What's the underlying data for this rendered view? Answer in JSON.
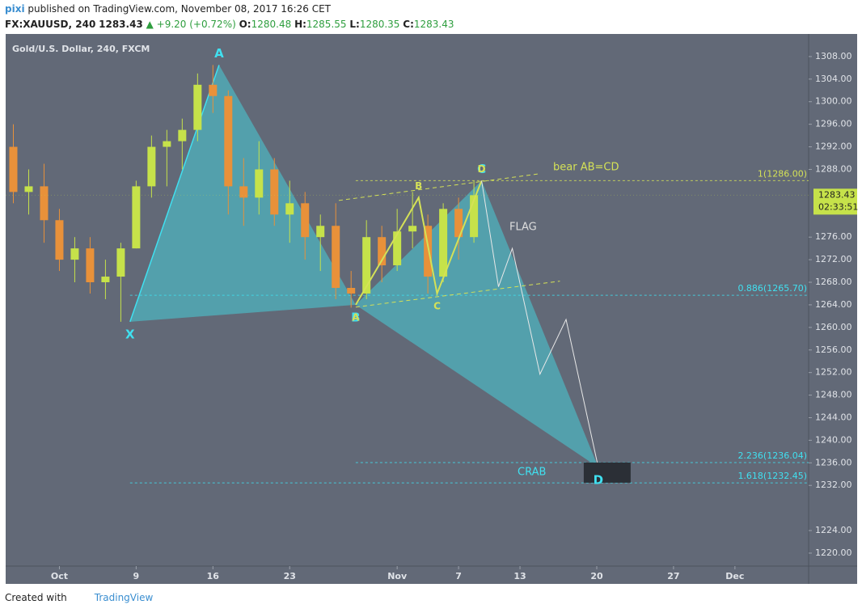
{
  "header": {
    "author": "pixi",
    "published": "published on TradingView.com, November 08, 2017 16:26 CET",
    "symbol": "FX:XAUUSD, 240",
    "last": "1283.43",
    "change": "▲ +9.20 (+0.72%)",
    "ohlc": [
      [
        "O:",
        "1280.48"
      ],
      [
        "H:",
        "1285.55"
      ],
      [
        "L:",
        "1280.35"
      ],
      [
        "C:",
        "1283.43"
      ]
    ]
  },
  "footer": {
    "created": "Created with",
    "brand": "TradingView"
  },
  "chart_data": {
    "type": "candlestick",
    "title": "Gold/U.S. Dollar, 240, FXCM",
    "x": [
      -3,
      -2,
      -1,
      0,
      1,
      2,
      3,
      4,
      5,
      6,
      7,
      8,
      9,
      10,
      11,
      12,
      13,
      14,
      15,
      16,
      17,
      18,
      19,
      20,
      21,
      22,
      23,
      24,
      25,
      26,
      27
    ],
    "open": [
      1292,
      1284,
      1285,
      1279,
      1272,
      1274,
      1268,
      1269,
      1274,
      1285,
      1292,
      1293,
      1295,
      1303,
      1301,
      1285,
      1283,
      1288,
      1280,
      1282,
      1276,
      1278,
      1267,
      1266,
      1276,
      1271,
      1277,
      1278,
      1269,
      1281,
      1276
    ],
    "high": [
      1296,
      1288,
      1289,
      1281,
      1276,
      1276,
      1272,
      1275,
      1286,
      1294,
      1295,
      1297,
      1305,
      1306.5,
      1302,
      1290,
      1293,
      1290,
      1286,
      1284,
      1280,
      1282,
      1270,
      1279,
      1278,
      1281,
      1284,
      1280,
      1282,
      1283,
      1286
    ],
    "low": [
      1282,
      1280,
      1275,
      1270,
      1268,
      1266,
      1265,
      1261,
      1274,
      1283,
      1285,
      1288,
      1293,
      1298,
      1280,
      1278,
      1280,
      1278,
      1275,
      1272,
      1270,
      1265,
      1263.5,
      1265,
      1268,
      1270,
      1274,
      1266,
      1268,
      1272,
      1275
    ],
    "close": [
      1284,
      1285,
      1279,
      1272,
      1274,
      1268,
      1269,
      1274,
      1285,
      1292,
      1293,
      1295,
      1303,
      1301,
      1285,
      1283,
      1288,
      1280,
      1282,
      1276,
      1278,
      1267,
      1266,
      1276,
      1271,
      1277,
      1278,
      1269,
      1281,
      1276,
      1283.43
    ],
    "up_color": "#c6e24a",
    "down_color": "#e8913a",
    "xlim": [
      -3.5,
      48.8
    ],
    "xticks": [
      {
        "value": 0,
        "label": "Oct"
      },
      {
        "value": 5,
        "label": "9"
      },
      {
        "value": 10,
        "label": "16"
      },
      {
        "value": 15,
        "label": "23"
      },
      {
        "value": 22,
        "label": "Nov"
      },
      {
        "value": 26,
        "label": "7"
      },
      {
        "value": 30,
        "label": "13"
      },
      {
        "value": 35,
        "label": "20"
      },
      {
        "value": 40,
        "label": "27"
      },
      {
        "value": 44,
        "label": "Dec"
      }
    ],
    "ylim": [
      1217.7,
      1312
    ],
    "yticks": [
      {
        "value": 1220,
        "label": "1220.00"
      },
      {
        "value": 1224,
        "label": "1224.00"
      },
      {
        "value": 1232,
        "label": "1232.00"
      },
      {
        "value": 1236,
        "label": "1236.00"
      },
      {
        "value": 1240,
        "label": "1240.00"
      },
      {
        "value": 1244,
        "label": "1244.00"
      },
      {
        "value": 1248,
        "label": "1248.00"
      },
      {
        "value": 1252,
        "label": "1252.00"
      },
      {
        "value": 1256,
        "label": "1256.00"
      },
      {
        "value": 1260,
        "label": "1260.00"
      },
      {
        "value": 1264,
        "label": "1264.00"
      },
      {
        "value": 1268,
        "label": "1268.00"
      },
      {
        "value": 1272,
        "label": "1272.00"
      },
      {
        "value": 1276,
        "label": "1276.00"
      },
      {
        "value": 1288,
        "label": "1288.00"
      },
      {
        "value": 1292,
        "label": "1292.00"
      },
      {
        "value": 1296,
        "label": "1296.00"
      },
      {
        "value": 1300,
        "label": "1300.00"
      },
      {
        "value": 1304,
        "label": "1304.00"
      },
      {
        "value": 1308,
        "label": "1308.00"
      }
    ],
    "last_price": 1283.43,
    "countdown": "02:33:51",
    "last_color": "#c6e24a",
    "levels": [
      {
        "value": 1286,
        "label": "1(1286.00)",
        "color": "#d4e157",
        "start": 19.3
      },
      {
        "value": 1265.7,
        "label": "0.886(1265.70)",
        "color": "#40e0f0",
        "start": 4.6
      },
      {
        "value": 1236.04,
        "label": "2.236(1236.04)",
        "color": "#40e0f0",
        "start": 19.3
      },
      {
        "value": 1232.45,
        "label": "1.618(1232.45)",
        "color": "#40e0f0",
        "start": 4.6
      }
    ],
    "crab": {
      "name": "CRAB",
      "color": "#40e0f0",
      "fill": "#4fb3bd",
      "labels": [
        "X",
        "A",
        "B",
        "C",
        "D"
      ],
      "x": [
        4.6,
        10.4,
        19.3,
        27.5,
        35.1
      ],
      "y": [
        1261,
        1306.5,
        1264,
        1286,
        1235.2
      ]
    },
    "abcd": {
      "name": "bear AB=CD",
      "color": "#d4e157",
      "labels": [
        "A",
        "B",
        "C",
        "D"
      ],
      "x": [
        19.3,
        23.4,
        24.6,
        27.5
      ],
      "y": [
        1264,
        1283,
        1266,
        1286
      ]
    },
    "channel": {
      "name": "FLAG",
      "color": "#d4e157",
      "upper": {
        "x": [
          18.2,
          31.2
        ],
        "y": [
          1282.5,
          1287.2
        ]
      },
      "lower": {
        "x": [
          19.3,
          32.6
        ],
        "y": [
          1263.6,
          1268.2
        ]
      }
    },
    "projection": {
      "color": "#e8e8e8",
      "x": [
        27.5,
        28.6,
        29.5,
        31.3,
        33,
        35.1
      ],
      "y": [
        1286,
        1267.2,
        1274,
        1251.7,
        1261.4,
        1235.2
      ]
    }
  }
}
